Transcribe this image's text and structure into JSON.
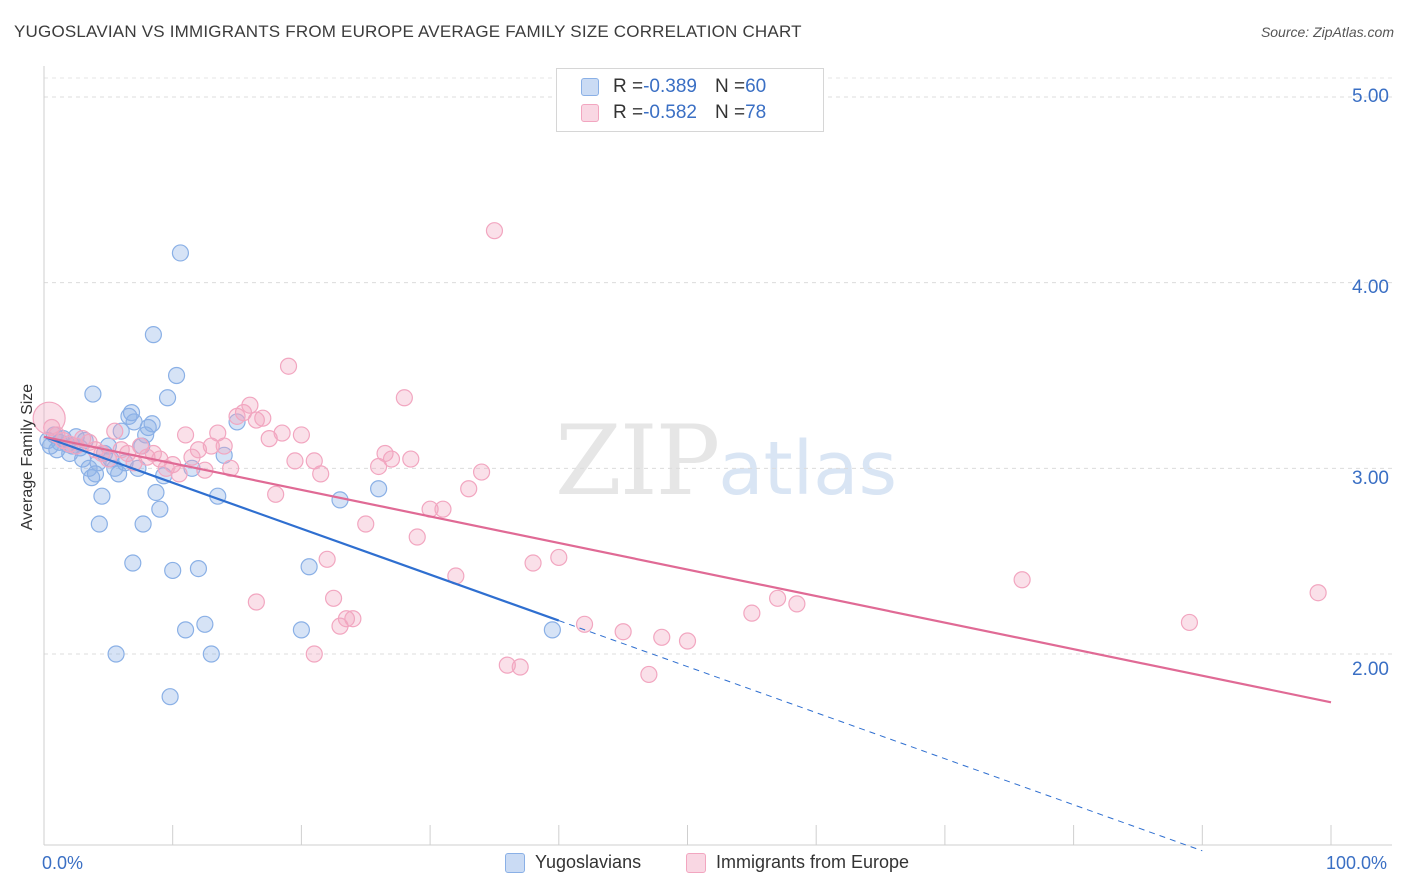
{
  "title": "YUGOSLAVIAN VS IMMIGRANTS FROM EUROPE AVERAGE FAMILY SIZE CORRELATION CHART",
  "source": "Source: ZipAtlas.com",
  "watermark": {
    "zip": "ZIP",
    "atlas": "atlas"
  },
  "legend": {
    "rows": [
      {
        "r_label": "R = ",
        "r_value": "-0.389",
        "n_label": "N = ",
        "n_value": "60",
        "color": "#8ab0e6"
      },
      {
        "r_label": "R = ",
        "r_value": "-0.582",
        "n_label": "N = ",
        "n_value": "78",
        "color": "#f2a6c0"
      }
    ]
  },
  "chart_data": {
    "type": "scatter",
    "title": "YUGOSLAVIAN VS IMMIGRANTS FROM EUROPE AVERAGE FAMILY SIZE CORRELATION CHART",
    "xlabel": "",
    "ylabel": "Average Family Size",
    "xlim": [
      0,
      100
    ],
    "ylim": [
      1.0,
      5.1
    ],
    "x_tick_labels": [
      "0.0%",
      "100.0%"
    ],
    "y_ticks": [
      {
        "value": 5.0,
        "label": "5.00"
      },
      {
        "value": 4.0,
        "label": "4.00"
      },
      {
        "value": 3.0,
        "label": "3.00"
      },
      {
        "value": 2.0,
        "label": "2.00"
      }
    ],
    "grid": true,
    "series": [
      {
        "name": "Yugoslavians",
        "color": "#8ab0e6",
        "line_color": "#2f6fd0",
        "trend": {
          "x0": 0,
          "y0": 3.17,
          "x1": 40,
          "y1": 2.18,
          "dash_to_x": 90,
          "dash_to_y": 0.94
        },
        "points": [
          [
            0.3,
            3.15
          ],
          [
            0.5,
            3.12
          ],
          [
            0.8,
            3.18
          ],
          [
            1.0,
            3.1
          ],
          [
            1.2,
            3.14
          ],
          [
            1.5,
            3.16
          ],
          [
            1.8,
            3.13
          ],
          [
            2.0,
            3.08
          ],
          [
            2.2,
            3.12
          ],
          [
            2.5,
            3.17
          ],
          [
            2.8,
            3.11
          ],
          [
            3.0,
            3.05
          ],
          [
            3.2,
            3.15
          ],
          [
            3.5,
            3.0
          ],
          [
            3.7,
            2.95
          ],
          [
            4.0,
            2.97
          ],
          [
            4.2,
            3.03
          ],
          [
            4.5,
            2.85
          ],
          [
            4.7,
            3.08
          ],
          [
            5.0,
            3.12
          ],
          [
            5.2,
            3.05
          ],
          [
            5.5,
            3.0
          ],
          [
            5.8,
            2.97
          ],
          [
            6.0,
            3.2
          ],
          [
            6.3,
            3.03
          ],
          [
            6.6,
            3.28
          ],
          [
            6.8,
            3.3
          ],
          [
            7.0,
            3.25
          ],
          [
            7.3,
            3.0
          ],
          [
            7.6,
            3.12
          ],
          [
            7.9,
            3.18
          ],
          [
            8.1,
            3.22
          ],
          [
            8.4,
            3.24
          ],
          [
            8.7,
            2.87
          ],
          [
            9.0,
            2.78
          ],
          [
            9.3,
            2.96
          ],
          [
            9.6,
            3.38
          ],
          [
            10.0,
            2.45
          ],
          [
            10.3,
            3.5
          ],
          [
            10.6,
            4.16
          ],
          [
            11.0,
            2.13
          ],
          [
            11.5,
            3.0
          ],
          [
            12.0,
            2.46
          ],
          [
            12.5,
            2.16
          ],
          [
            13.0,
            2.0
          ],
          [
            13.5,
            2.85
          ],
          [
            14.0,
            3.07
          ],
          [
            15.0,
            3.25
          ],
          [
            3.8,
            3.4
          ],
          [
            4.3,
            2.7
          ],
          [
            6.9,
            2.49
          ],
          [
            7.7,
            2.7
          ],
          [
            8.5,
            3.72
          ],
          [
            9.8,
            1.77
          ],
          [
            5.6,
            2.0
          ],
          [
            20.0,
            2.13
          ],
          [
            20.6,
            2.47
          ],
          [
            23.0,
            2.83
          ],
          [
            26.0,
            2.89
          ],
          [
            39.5,
            2.13
          ]
        ]
      },
      {
        "name": "Immigrants from Europe",
        "color": "#f2a6c0",
        "line_color": "#e06a95",
        "trend": {
          "x0": 0,
          "y0": 3.17,
          "x1": 100,
          "y1": 1.74
        },
        "points": [
          [
            0.4,
            3.27
          ],
          [
            0.6,
            3.22
          ],
          [
            1.0,
            3.18
          ],
          [
            1.5,
            3.15
          ],
          [
            2.0,
            3.13
          ],
          [
            2.5,
            3.12
          ],
          [
            3.0,
            3.16
          ],
          [
            3.5,
            3.14
          ],
          [
            4.0,
            3.1
          ],
          [
            4.5,
            3.08
          ],
          [
            5.0,
            3.05
          ],
          [
            5.5,
            3.2
          ],
          [
            6.0,
            3.1
          ],
          [
            6.5,
            3.08
          ],
          [
            7.0,
            3.03
          ],
          [
            7.5,
            3.12
          ],
          [
            8.0,
            3.06
          ],
          [
            8.5,
            3.08
          ],
          [
            9.0,
            3.05
          ],
          [
            9.5,
            3.0
          ],
          [
            10.0,
            3.02
          ],
          [
            10.5,
            2.97
          ],
          [
            11.0,
            3.18
          ],
          [
            11.5,
            3.06
          ],
          [
            12.0,
            3.1
          ],
          [
            12.5,
            2.99
          ],
          [
            13.0,
            3.12
          ],
          [
            13.5,
            3.19
          ],
          [
            14.0,
            3.12
          ],
          [
            14.5,
            3.0
          ],
          [
            15.0,
            3.28
          ],
          [
            15.5,
            3.3
          ],
          [
            16.0,
            3.34
          ],
          [
            16.5,
            3.26
          ],
          [
            17.0,
            3.27
          ],
          [
            17.5,
            3.16
          ],
          [
            18.0,
            2.86
          ],
          [
            18.5,
            3.19
          ],
          [
            19.0,
            3.55
          ],
          [
            19.5,
            3.04
          ],
          [
            20.0,
            3.18
          ],
          [
            21.0,
            3.04
          ],
          [
            21.5,
            2.97
          ],
          [
            22.0,
            2.51
          ],
          [
            22.5,
            2.3
          ],
          [
            23.0,
            2.15
          ],
          [
            23.5,
            2.19
          ],
          [
            24.0,
            2.19
          ],
          [
            25.0,
            2.7
          ],
          [
            26.0,
            3.01
          ],
          [
            26.5,
            3.08
          ],
          [
            27.0,
            3.05
          ],
          [
            28.0,
            3.38
          ],
          [
            28.5,
            3.05
          ],
          [
            29.0,
            2.63
          ],
          [
            30.0,
            2.78
          ],
          [
            31.0,
            2.78
          ],
          [
            32.0,
            2.42
          ],
          [
            33.0,
            2.89
          ],
          [
            34.0,
            2.98
          ],
          [
            35.0,
            4.28
          ],
          [
            36.0,
            1.94
          ],
          [
            37.0,
            1.93
          ],
          [
            38.0,
            2.49
          ],
          [
            40.0,
            2.52
          ],
          [
            42.0,
            2.16
          ],
          [
            45.0,
            2.12
          ],
          [
            47.0,
            1.89
          ],
          [
            48.0,
            2.09
          ],
          [
            50.0,
            2.07
          ],
          [
            55.0,
            2.22
          ],
          [
            57.0,
            2.3
          ],
          [
            58.5,
            2.27
          ],
          [
            76.0,
            2.4
          ],
          [
            89.0,
            2.17
          ],
          [
            99.0,
            2.33
          ],
          [
            16.5,
            2.28
          ],
          [
            21.0,
            2.0
          ]
        ]
      }
    ]
  },
  "bottom_legend": [
    {
      "label": "Yugoslavians",
      "color": "#8ab0e6"
    },
    {
      "label": "Immigrants from Europe",
      "color": "#f2a6c0"
    }
  ]
}
